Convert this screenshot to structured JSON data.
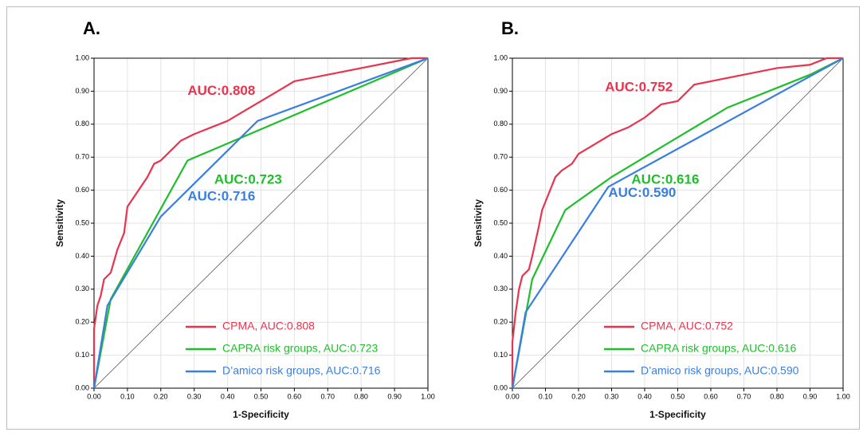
{
  "chart_data": [
    {
      "type": "line",
      "title": "A.",
      "x_label": "1-Specificity",
      "y_label": "Sensitivity",
      "xlim": [
        0,
        1
      ],
      "ylim": [
        0,
        1
      ],
      "grid": true,
      "legend": "lower right",
      "xticks": [
        {
          "value": 0,
          "label": "0.00"
        },
        {
          "value": 0.1,
          "label": "0.10"
        },
        {
          "value": 0.2,
          "label": "0.20"
        },
        {
          "value": 0.3,
          "label": "0.30"
        },
        {
          "value": 0.4,
          "label": "0.40"
        },
        {
          "value": 0.5,
          "label": "0.50"
        },
        {
          "value": 0.6,
          "label": "0.60"
        },
        {
          "value": 0.7,
          "label": "0.70"
        },
        {
          "value": 0.8,
          "label": "0.80"
        },
        {
          "value": 0.9,
          "label": "0.90"
        },
        {
          "value": 1,
          "label": "1.00"
        }
      ],
      "yticks": [
        {
          "value": 0,
          "label": "0.00"
        },
        {
          "value": 0.1,
          "label": "0.10"
        },
        {
          "value": 0.2,
          "label": "0.20"
        },
        {
          "value": 0.3,
          "label": "0.30"
        },
        {
          "value": 0.4,
          "label": "0.40"
        },
        {
          "value": 0.5,
          "label": "0.50"
        },
        {
          "value": 0.6,
          "label": "0.60"
        },
        {
          "value": 0.7,
          "label": "0.70"
        },
        {
          "value": 0.8,
          "label": "0.80"
        },
        {
          "value": 0.9,
          "label": "0.90"
        },
        {
          "value": 1,
          "label": "1.00"
        }
      ],
      "series": [
        {
          "name": "CPMA, AUC:0.808",
          "color": "#e8344e",
          "x": [
            0,
            0,
            0.01,
            0.02,
            0.03,
            0.05,
            0.07,
            0.09,
            0.1,
            0.12,
            0.14,
            0.16,
            0.18,
            0.2,
            0.23,
            0.26,
            0.3,
            0.35,
            0.4,
            0.45,
            0.5,
            0.55,
            0.6,
            0.7,
            0.8,
            0.9,
            0.95,
            1
          ],
          "values": [
            0,
            0.18,
            0.25,
            0.28,
            0.33,
            0.35,
            0.42,
            0.47,
            0.55,
            0.58,
            0.61,
            0.64,
            0.68,
            0.69,
            0.72,
            0.75,
            0.77,
            0.79,
            0.81,
            0.84,
            0.87,
            0.9,
            0.93,
            0.95,
            0.97,
            0.99,
            1,
            1
          ]
        },
        {
          "name": "CAPRA risk groups, AUC:0.723",
          "color": "#1fbf2c",
          "x": [
            0,
            0.05,
            0.28,
            1
          ],
          "values": [
            0,
            0.27,
            0.69,
            1
          ]
        },
        {
          "name": "D’amico risk groups, AUC:0.716",
          "color": "#3a7fe0",
          "x": [
            0,
            0.04,
            0.2,
            0.49,
            1
          ],
          "values": [
            0,
            0.25,
            0.52,
            0.81,
            1
          ]
        }
      ],
      "annotations": [
        {
          "text": "AUC:0.808",
          "color": "#e8344e"
        },
        {
          "text": "AUC:0.723",
          "color": "#1fbf2c"
        },
        {
          "text": "AUC:0.716",
          "color": "#3a7fe0"
        }
      ]
    },
    {
      "type": "line",
      "title": "B.",
      "x_label": "1-Specificity",
      "y_label": "Sensitivity",
      "xlim": [
        0,
        1
      ],
      "ylim": [
        0,
        1
      ],
      "grid": true,
      "legend": "lower right",
      "xticks": [
        {
          "value": 0,
          "label": "0.00"
        },
        {
          "value": 0.1,
          "label": "0.10"
        },
        {
          "value": 0.2,
          "label": "0.20"
        },
        {
          "value": 0.3,
          "label": "0.30"
        },
        {
          "value": 0.4,
          "label": "0.40"
        },
        {
          "value": 0.5,
          "label": "0.50"
        },
        {
          "value": 0.6,
          "label": "0.60"
        },
        {
          "value": 0.7,
          "label": "0.70"
        },
        {
          "value": 0.8,
          "label": "0.80"
        },
        {
          "value": 0.9,
          "label": "0.90"
        },
        {
          "value": 1,
          "label": "1.00"
        }
      ],
      "yticks": [
        {
          "value": 0,
          "label": "0.00"
        },
        {
          "value": 0.1,
          "label": "0.10"
        },
        {
          "value": 0.2,
          "label": "0.20"
        },
        {
          "value": 0.3,
          "label": "0.30"
        },
        {
          "value": 0.4,
          "label": "0.40"
        },
        {
          "value": 0.5,
          "label": "0.50"
        },
        {
          "value": 0.6,
          "label": "0.60"
        },
        {
          "value": 0.7,
          "label": "0.70"
        },
        {
          "value": 0.8,
          "label": "0.80"
        },
        {
          "value": 0.9,
          "label": "0.90"
        },
        {
          "value": 1,
          "label": "1.00"
        }
      ],
      "series": [
        {
          "name": "CPMA, AUC:0.752",
          "color": "#e8344e",
          "x": [
            0,
            0,
            0.01,
            0.02,
            0.03,
            0.05,
            0.06,
            0.08,
            0.09,
            0.11,
            0.13,
            0.15,
            0.18,
            0.2,
            0.25,
            0.3,
            0.35,
            0.4,
            0.45,
            0.5,
            0.55,
            0.6,
            0.7,
            0.8,
            0.9,
            0.95,
            1
          ],
          "values": [
            0,
            0.14,
            0.23,
            0.3,
            0.34,
            0.36,
            0.4,
            0.49,
            0.54,
            0.59,
            0.64,
            0.66,
            0.68,
            0.71,
            0.74,
            0.77,
            0.79,
            0.82,
            0.86,
            0.87,
            0.92,
            0.93,
            0.95,
            0.97,
            0.98,
            1,
            1
          ]
        },
        {
          "name": "CAPRA risk groups, AUC:0.616",
          "color": "#1fbf2c",
          "x": [
            0,
            0.06,
            0.16,
            0.3,
            0.5,
            0.65,
            0.9,
            1
          ],
          "values": [
            0,
            0.33,
            0.54,
            0.64,
            0.76,
            0.85,
            0.95,
            1
          ]
        },
        {
          "name": "D’amico risk groups, AUC:0.590",
          "color": "#3a7fe0",
          "x": [
            0,
            0.04,
            0.29,
            1
          ],
          "values": [
            0,
            0.23,
            0.61,
            1
          ]
        }
      ],
      "annotations": [
        {
          "text": "AUC:0.752",
          "color": "#e8344e"
        },
        {
          "text": "AUC:0.616",
          "color": "#1fbf2c"
        },
        {
          "text": "AUC:0.590",
          "color": "#3a7fe0"
        }
      ]
    }
  ]
}
